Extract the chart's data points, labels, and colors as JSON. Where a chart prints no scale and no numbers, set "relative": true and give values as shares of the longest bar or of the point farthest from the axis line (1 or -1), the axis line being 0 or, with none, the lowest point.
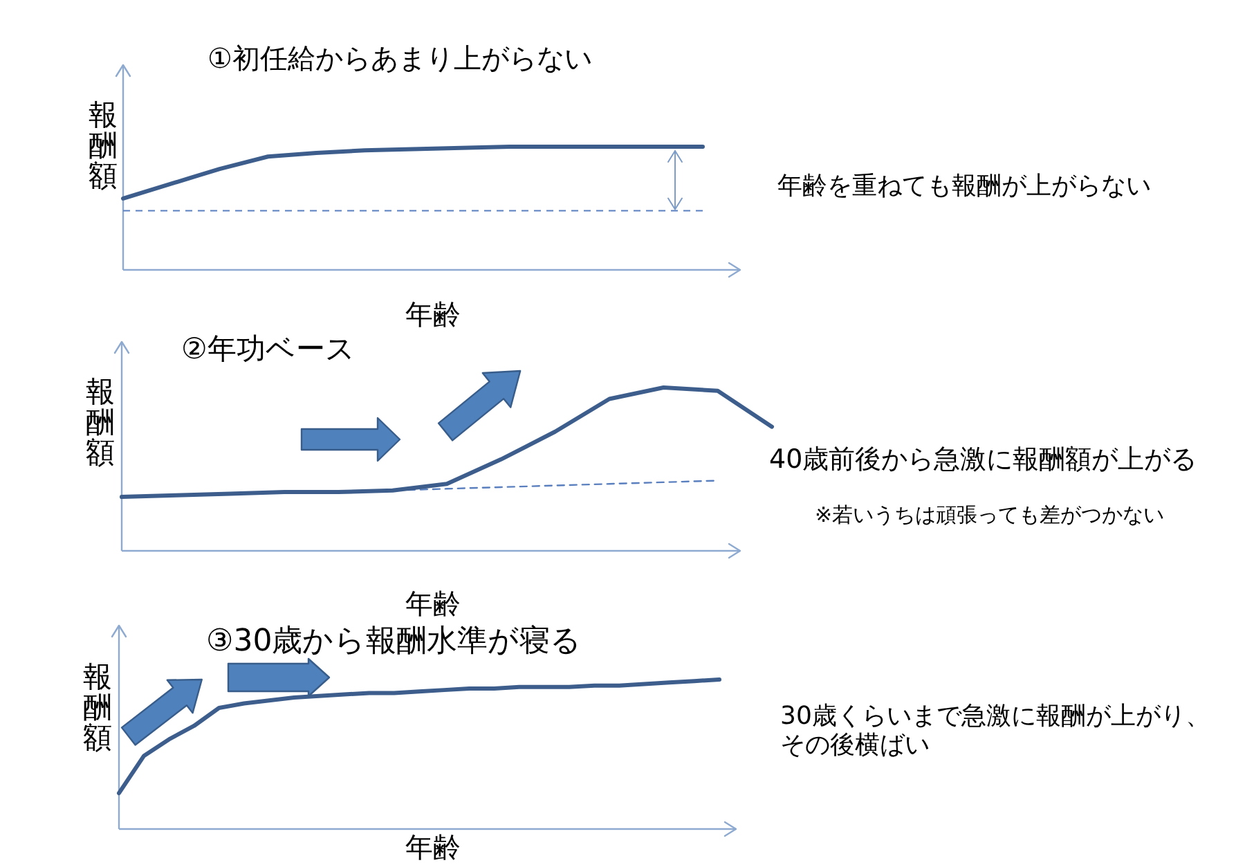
{
  "chart_data": [
    {
      "type": "line",
      "title": "①初任給からあまり上がらない",
      "xlabel": "年齢",
      "ylabel": "報酬額",
      "relative": true,
      "categories": [
        null,
        null,
        null,
        null,
        null,
        null,
        null,
        null,
        null,
        null,
        null,
        null,
        null
      ],
      "series": [
        {
          "color": "#3d5e8c",
          "values": [
            0.58,
            0.7,
            0.82,
            0.92,
            0.95,
            0.97,
            0.98,
            0.99,
            1.0,
            1.0,
            1.0,
            1.0,
            1.0
          ]
        }
      ],
      "ref_lines": [
        {
          "axis": "y",
          "value": 0.48,
          "color": "#5a7fbf",
          "line_style": "dashed"
        }
      ],
      "annotations": [
        "年齢を重ねても報酬が上がらない"
      ],
      "marker": "none",
      "line_style": "solid"
    },
    {
      "type": "line",
      "title": "②年功ベース",
      "xlabel": "年齢",
      "ylabel": "報酬額",
      "relative": true,
      "categories": [
        null,
        null,
        null,
        null,
        null,
        null,
        null,
        null,
        null,
        null,
        null,
        null,
        null
      ],
      "series": [
        {
          "color": "#3d5e8c",
          "values": [
            0.33,
            0.34,
            0.35,
            0.36,
            0.36,
            0.37,
            0.41,
            0.56,
            0.73,
            0.93,
            1.0,
            0.98,
            0.76
          ]
        },
        {
          "color": "#5a7fbf",
          "line_style": "dashed",
          "values": [
            0.33,
            0.34,
            0.35,
            0.36,
            0.36,
            0.37,
            0.38,
            0.39,
            0.4,
            0.41,
            0.42,
            0.43,
            null
          ]
        }
      ],
      "annotations": [
        "40歳前後から急激に報酬額が上がる",
        "※若いうちは頑張っても差がつかない"
      ],
      "marker": "none",
      "line_style": "solid"
    },
    {
      "type": "line",
      "title": "③30歳から報酬水準が寝る",
      "xlabel": "年齢",
      "ylabel": "報酬額",
      "relative": true,
      "categories": [
        null,
        null,
        null,
        null,
        null,
        null,
        null,
        null,
        null,
        null,
        null,
        null,
        null,
        null,
        null,
        null,
        null,
        null,
        null,
        null,
        null,
        null,
        null,
        null,
        null
      ],
      "series": [
        {
          "color": "#3d5e8c",
          "values": [
            0.24,
            0.49,
            0.6,
            0.69,
            0.81,
            0.84,
            0.86,
            0.88,
            0.89,
            0.9,
            0.91,
            0.91,
            0.92,
            0.93,
            0.94,
            0.94,
            0.95,
            0.95,
            0.95,
            0.96,
            0.96,
            0.97,
            0.98,
            0.99,
            1.0
          ]
        }
      ],
      "annotations": [
        "30歳くらいまで急激に報酬が上がり、その後横ばい"
      ],
      "marker": "none",
      "line_style": "solid"
    }
  ]
}
